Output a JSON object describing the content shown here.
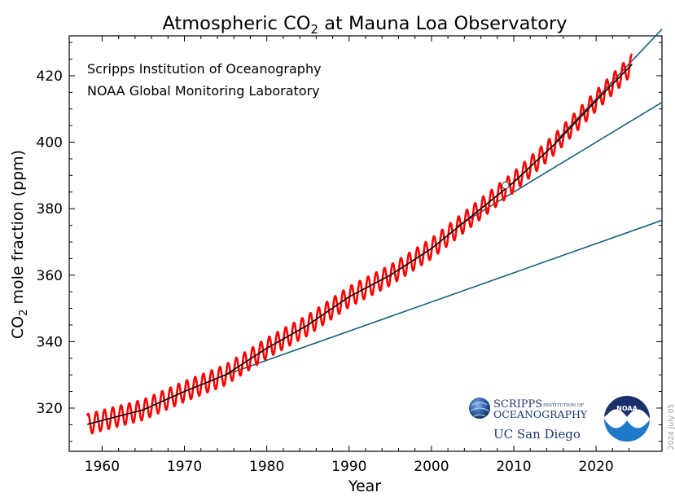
{
  "chart_data": {
    "type": "line",
    "title_main": "Atmospheric CO",
    "title_sub": "2",
    "title_rest": " at Mauna Loa Observatory",
    "xlabel": "Year",
    "ylabel_main": "CO",
    "ylabel_sub": "2",
    "ylabel_rest": " mole fraction (ppm)",
    "xlim": [
      1956,
      2028
    ],
    "ylim": [
      307,
      432
    ],
    "x_ticks": [
      1960,
      1970,
      1980,
      1990,
      2000,
      2010,
      2020
    ],
    "x_tick_labels": [
      "1960",
      "1970",
      "1980",
      "1990",
      "2000",
      "2010",
      "2020"
    ],
    "y_ticks": [
      320,
      340,
      360,
      380,
      400,
      420
    ],
    "y_tick_labels": [
      "320",
      "340",
      "360",
      "380",
      "400",
      "420"
    ],
    "annotations": {
      "line1": "Scripps Institution of Oceanography",
      "line2": "NOAA Global Monitoring Laboratory"
    },
    "trend_anchor": [
      [
        1958,
        315
      ],
      [
        1965,
        319.5
      ],
      [
        1970,
        325
      ],
      [
        1975,
        330
      ],
      [
        1980,
        338
      ],
      [
        1985,
        345
      ],
      [
        1990,
        353.5
      ],
      [
        1995,
        360
      ],
      [
        2000,
        368
      ],
      [
        2005,
        378
      ],
      [
        2010,
        388
      ],
      [
        2015,
        399.5
      ],
      [
        2020,
        412.5
      ],
      [
        2024.4,
        423.5
      ]
    ],
    "seasonal_amplitude_ppm": 3.1,
    "marker_point": [
      2009,
      387
    ],
    "projections": [
      {
        "x": [
          1975,
          2028
        ],
        "y": [
          330,
          376.5
        ]
      },
      {
        "x": [
          2003,
          2028
        ],
        "y": [
          374.5,
          412
        ]
      },
      {
        "x": [
          2015,
          2028
        ],
        "y": [
          400,
          434
        ]
      }
    ],
    "colors": {
      "monthly": "#ff0000",
      "trend": "#000000",
      "projection": "#19607d",
      "marker_fill": "#ffffff",
      "marker_stroke": "#555555"
    },
    "grid": false,
    "legend": "none"
  },
  "logos": {
    "scripps_line1": "SCRIPPS",
    "scripps_line1_small": "INSTITUTION OF",
    "scripps_line2": "OCEANOGRAPHY",
    "ucsd": "UC San Diego",
    "noaa": "NOAA"
  },
  "stamp": "2024 July 05"
}
